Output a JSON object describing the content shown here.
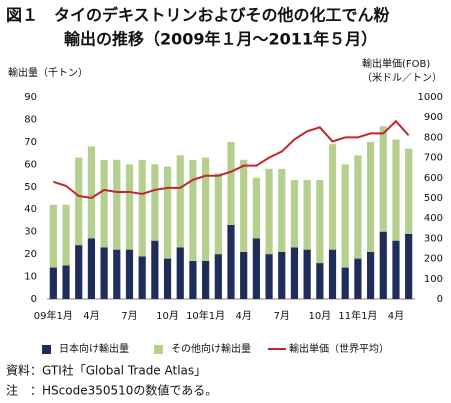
{
  "chart_data": {
    "type": "stacked-bar-line",
    "title": [
      "図１　タイのデキストリンおよびその他の化工でん粉",
      "輸出の推移（2009年１月～2011年５月）"
    ],
    "y_label": "輸出量（千トン）",
    "y2_label": [
      "輸出単価(FOB)",
      "（米ドル／トン）"
    ],
    "categories": [
      "09年1月",
      null,
      null,
      "4月",
      null,
      null,
      "7月",
      null,
      null,
      "10月",
      null,
      null,
      "10年1月",
      null,
      null,
      "4月",
      null,
      null,
      "7月",
      null,
      null,
      "10月",
      null,
      null,
      "11年1月",
      null,
      null,
      "4月",
      null
    ],
    "series": [
      {
        "name": "日本向け輸出量",
        "color": "#1f2d5a",
        "kind": "bar",
        "values": [
          14,
          15,
          24,
          27,
          23,
          22,
          22,
          19,
          26,
          18,
          23,
          17,
          17,
          20,
          33,
          21,
          27,
          20,
          21,
          23,
          22,
          16,
          22,
          14,
          18,
          21,
          30,
          26,
          29
        ]
      },
      {
        "name": "その他向け輸出量",
        "color": "#b5cf8f",
        "kind": "bar",
        "values": [
          28,
          27,
          39,
          41,
          39,
          40,
          38,
          43,
          34,
          41,
          41,
          45,
          46,
          36,
          37,
          41,
          27,
          38,
          37,
          30,
          31,
          37,
          47,
          46,
          46,
          49,
          47,
          45,
          38
        ]
      },
      {
        "name": "輸出単価（世界平均）",
        "color": "#c0282a",
        "kind": "line",
        "axis": "y2",
        "values": [
          580,
          560,
          510,
          500,
          540,
          530,
          530,
          520,
          540,
          550,
          550,
          590,
          610,
          610,
          630,
          660,
          660,
          700,
          730,
          790,
          830,
          850,
          780,
          800,
          800,
          820,
          820,
          880,
          810
        ]
      }
    ],
    "ylim": [
      0,
      90
    ],
    "yticks": [
      0,
      10,
      20,
      30,
      40,
      50,
      60,
      70,
      80,
      90
    ],
    "y2lim": [
      0,
      1000
    ],
    "y2ticks": [
      0,
      100,
      200,
      300,
      400,
      500,
      600,
      700,
      800,
      900,
      1000
    ],
    "grid": false,
    "legend": "bottom",
    "notes": [
      "資料：GTI社「Global Trade Atlas」",
      "注　：HScode350510の数値である。"
    ]
  }
}
